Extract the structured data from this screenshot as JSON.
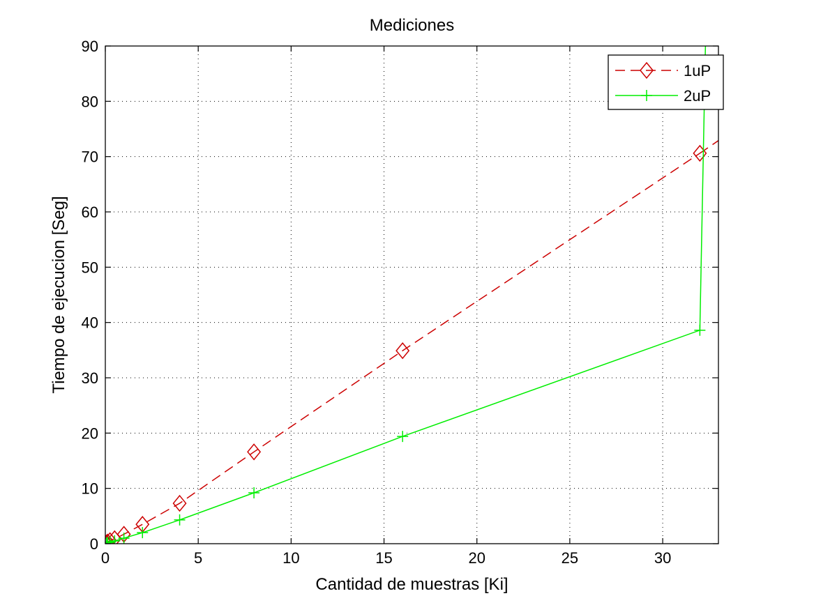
{
  "chart_data": {
    "type": "line",
    "title": "Mediciones",
    "xlabel": "Cantidad de muestras [Ki]",
    "ylabel": "Tiempo de ejecucion [Seg]",
    "xlim": [
      0,
      33
    ],
    "ylim": [
      0,
      90
    ],
    "xticks": [
      0,
      5,
      10,
      15,
      20,
      25,
      30
    ],
    "yticks": [
      0,
      10,
      20,
      30,
      40,
      50,
      60,
      70,
      80,
      90
    ],
    "grid": true,
    "legend_position": "top-right",
    "series": [
      {
        "name": "1uP",
        "color": "#cc0000",
        "line_style": "dashed",
        "marker": "diamond",
        "x": [
          0.0625,
          0.125,
          0.25,
          0.5,
          1,
          2,
          4,
          8,
          16,
          32
        ],
        "y": [
          0.15,
          0.3,
          0.55,
          0.9,
          1.7,
          3.5,
          7.3,
          16.6,
          34.9,
          70.6
        ],
        "extension": {
          "x": [
            32,
            33
          ],
          "y": [
            70.6,
            72.9
          ]
        }
      },
      {
        "name": "2uP",
        "color": "#00ee00",
        "line_style": "solid",
        "marker": "plus",
        "x": [
          0.0625,
          0.125,
          0.25,
          0.5,
          1,
          2,
          4,
          8,
          16,
          32,
          32.3
        ],
        "y": [
          0.1,
          0.2,
          0.3,
          0.5,
          1.0,
          2.0,
          4.3,
          9.2,
          19.4,
          38.6,
          90
        ],
        "marker_count": 10
      }
    ]
  }
}
